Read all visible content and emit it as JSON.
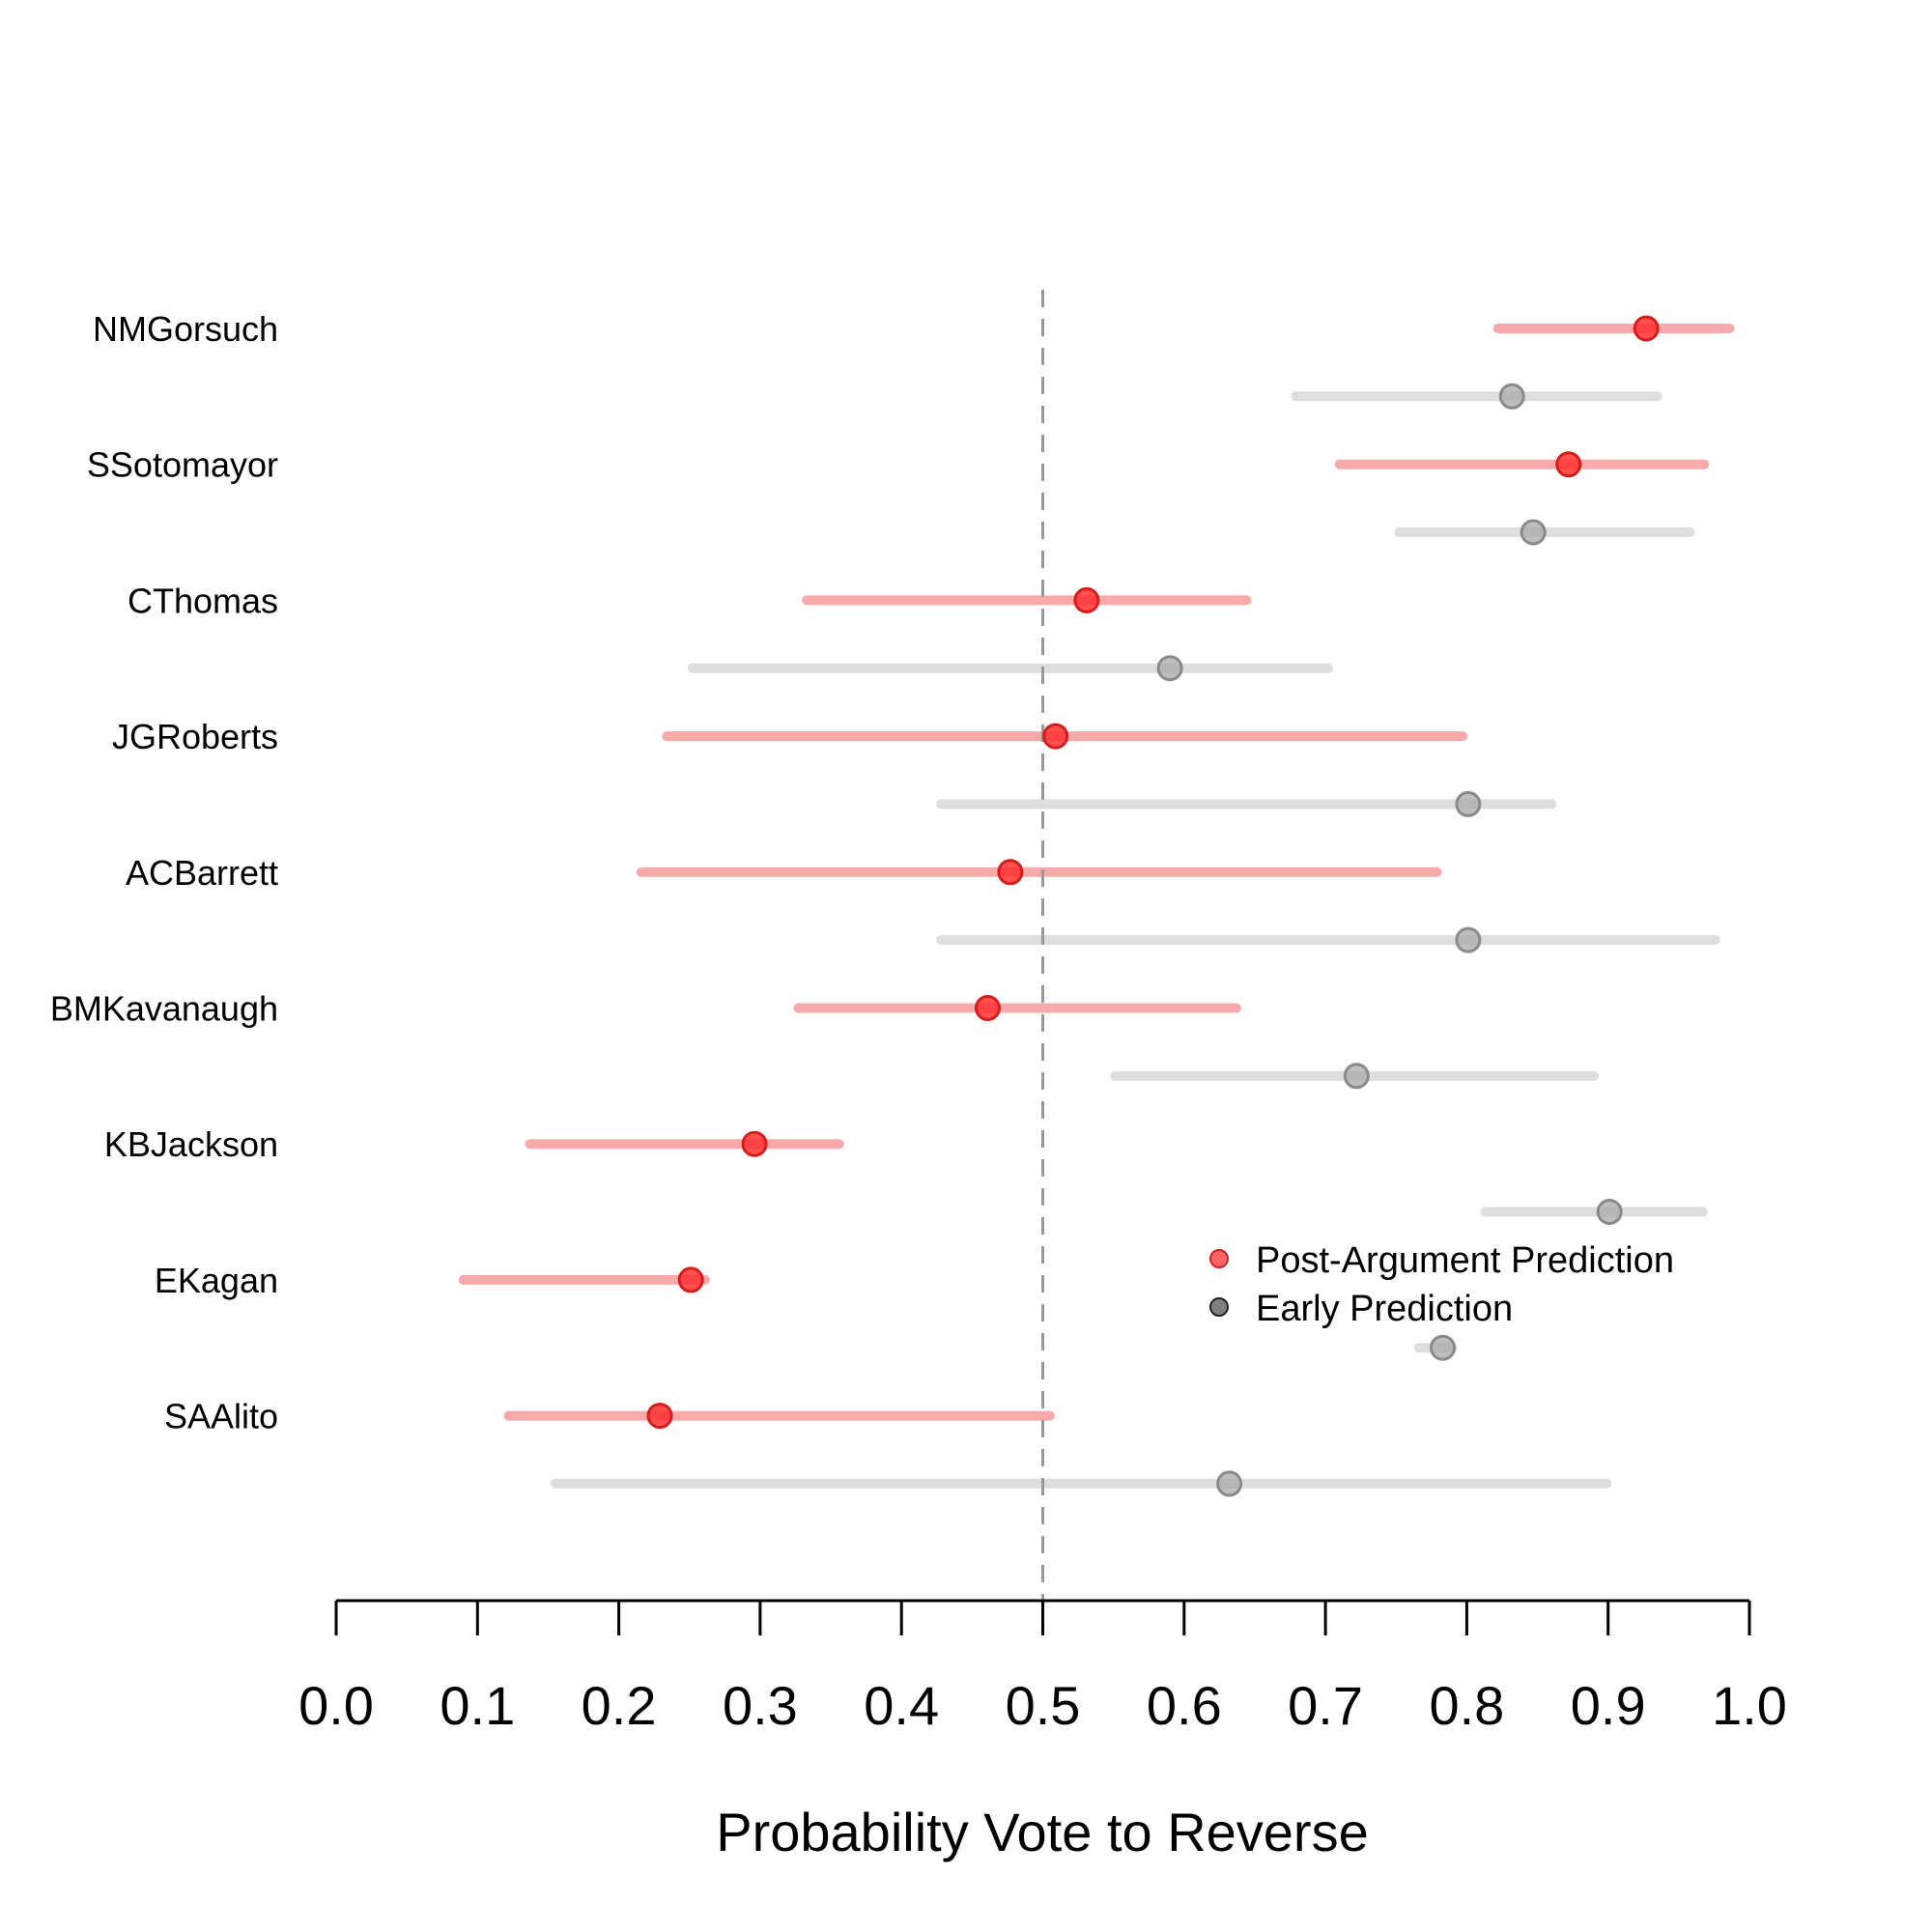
{
  "chart_data": {
    "type": "dot-interval",
    "title": "",
    "xlabel": "Probability Vote to Reverse",
    "ylabel": "",
    "xlim": [
      0.0,
      1.0
    ],
    "xticks": [
      "0.0",
      "0.1",
      "0.2",
      "0.3",
      "0.4",
      "0.5",
      "0.6",
      "0.7",
      "0.8",
      "0.9",
      "1.0"
    ],
    "reference_line": 0.5,
    "legend_position": "middle-right",
    "colors": {
      "post": "#ff3030",
      "early": "#9a9a9a",
      "reference": "#999999"
    },
    "series": [
      {
        "name": "Post-Argument Prediction",
        "key": "post"
      },
      {
        "name": "Early Prediction",
        "key": "early"
      }
    ],
    "justices": [
      {
        "name": "NMGorsuch",
        "post": {
          "est": 0.927,
          "lo": 0.822,
          "hi": 0.986
        },
        "early": {
          "est": 0.832,
          "lo": 0.679,
          "hi": 0.935
        }
      },
      {
        "name": "SSotomayor",
        "post": {
          "est": 0.872,
          "lo": 0.71,
          "hi": 0.968
        },
        "early": {
          "est": 0.847,
          "lo": 0.752,
          "hi": 0.958
        }
      },
      {
        "name": "CThomas",
        "post": {
          "est": 0.531,
          "lo": 0.333,
          "hi": 0.644
        },
        "early": {
          "est": 0.59,
          "lo": 0.252,
          "hi": 0.702
        }
      },
      {
        "name": "JGRoberts",
        "post": {
          "est": 0.509,
          "lo": 0.234,
          "hi": 0.797
        },
        "early": {
          "est": 0.801,
          "lo": 0.428,
          "hi": 0.86
        }
      },
      {
        "name": "ACBarrett",
        "post": {
          "est": 0.477,
          "lo": 0.216,
          "hi": 0.779
        },
        "early": {
          "est": 0.801,
          "lo": 0.428,
          "hi": 0.976
        }
      },
      {
        "name": "BMKavanaugh",
        "post": {
          "est": 0.461,
          "lo": 0.327,
          "hi": 0.637
        },
        "early": {
          "est": 0.722,
          "lo": 0.551,
          "hi": 0.89
        }
      },
      {
        "name": "KBJackson",
        "post": {
          "est": 0.296,
          "lo": 0.137,
          "hi": 0.356
        },
        "early": {
          "est": 0.901,
          "lo": 0.813,
          "hi": 0.967
        }
      },
      {
        "name": "EKagan",
        "post": {
          "est": 0.251,
          "lo": 0.09,
          "hi": 0.261
        },
        "early": {
          "est": 0.783,
          "lo": 0.766,
          "hi": 0.79
        }
      },
      {
        "name": "SAAlito",
        "post": {
          "est": 0.229,
          "lo": 0.122,
          "hi": 0.505
        },
        "early": {
          "est": 0.632,
          "lo": 0.155,
          "hi": 0.899
        }
      }
    ]
  }
}
